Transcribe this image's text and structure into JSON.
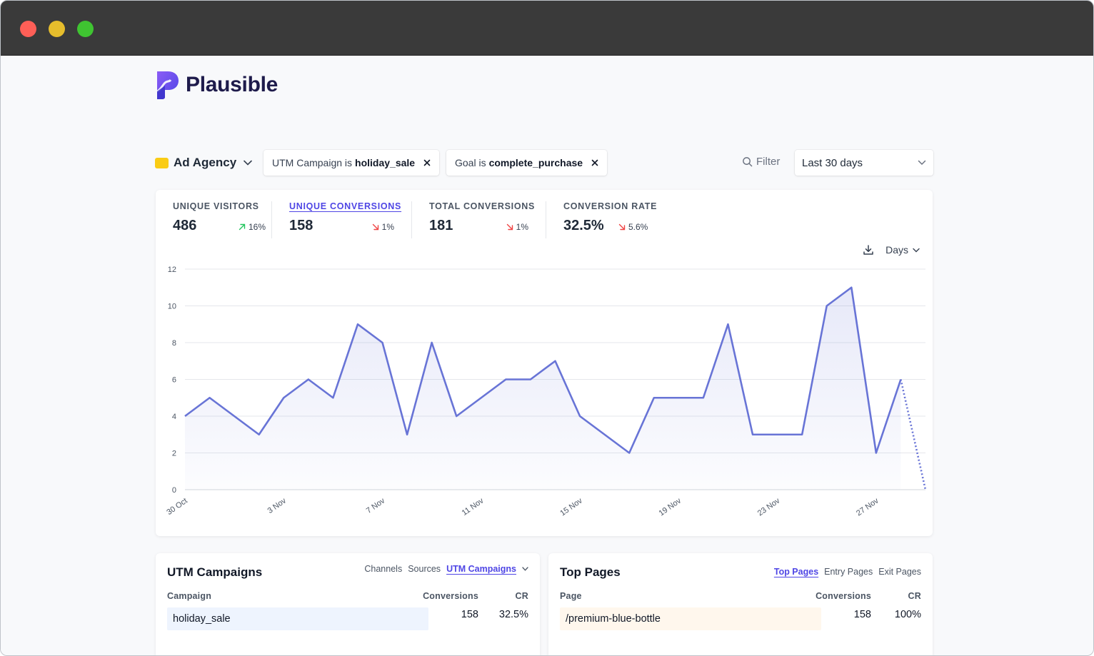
{
  "app": {
    "name": "Plausible"
  },
  "site": {
    "name": "Ad Agency"
  },
  "filters": [
    {
      "prefix": "UTM Campaign is",
      "value": "holiday_sale"
    },
    {
      "prefix": "Goal is",
      "value": "complete_purchase"
    }
  ],
  "filter_button": {
    "label": "Filter"
  },
  "period": {
    "label": "Last 30 days"
  },
  "stats": [
    {
      "label": "UNIQUE VISITORS",
      "value": "486",
      "change": "16%",
      "direction": "up"
    },
    {
      "label": "UNIQUE CONVERSIONS",
      "value": "158",
      "change": "1%",
      "direction": "down"
    },
    {
      "label": "TOTAL CONVERSIONS",
      "value": "181",
      "change": "1%",
      "direction": "down"
    },
    {
      "label": "CONVERSION RATE",
      "value": "32.5%",
      "change": "5.6%",
      "direction": "down"
    }
  ],
  "interval": {
    "label": "Days"
  },
  "colors": {
    "accent": "#4f46e5",
    "line": "#6874d6",
    "up": "#22c55e",
    "down": "#ef4444",
    "site_dot": "#facc15"
  },
  "chart_data": {
    "type": "area",
    "x": [
      "30 Oct",
      "31 Oct",
      "1 Nov",
      "2 Nov",
      "3 Nov",
      "4 Nov",
      "5 Nov",
      "6 Nov",
      "7 Nov",
      "8 Nov",
      "9 Nov",
      "10 Nov",
      "11 Nov",
      "12 Nov",
      "13 Nov",
      "14 Nov",
      "15 Nov",
      "16 Nov",
      "17 Nov",
      "18 Nov",
      "19 Nov",
      "20 Nov",
      "21 Nov",
      "22 Nov",
      "23 Nov",
      "24 Nov",
      "25 Nov",
      "26 Nov",
      "27 Nov",
      "28 Nov",
      "29 Nov"
    ],
    "values": [
      4,
      5,
      4,
      3,
      5,
      6,
      5,
      9,
      8,
      3,
      8,
      4,
      5,
      6,
      6,
      7,
      4,
      3,
      2,
      5,
      5,
      5,
      9,
      3,
      3,
      3,
      10,
      11,
      2,
      6,
      0
    ],
    "dotted_last_segment": true,
    "x_tick_labels": [
      "30 Oct",
      "3 Nov",
      "7 Nov",
      "11 Nov",
      "15 Nov",
      "19 Nov",
      "23 Nov",
      "27 Nov"
    ],
    "y_ticks": [
      0,
      2,
      4,
      6,
      8,
      10,
      12
    ],
    "ylim": [
      0,
      12
    ],
    "grid": true
  },
  "panels": {
    "utm": {
      "title": "UTM Campaigns",
      "tabs": [
        "Channels",
        "Sources",
        "UTM Campaigns"
      ],
      "active_tab": "UTM Campaigns",
      "columns": [
        "Campaign",
        "Conversions",
        "CR"
      ],
      "rows": [
        {
          "label": "holiday_sale",
          "conversions": "158",
          "cr": "32.5%"
        }
      ]
    },
    "pages": {
      "title": "Top Pages",
      "tabs": [
        "Top Pages",
        "Entry Pages",
        "Exit Pages"
      ],
      "active_tab": "Top Pages",
      "columns": [
        "Page",
        "Conversions",
        "CR"
      ],
      "rows": [
        {
          "label": "/premium-blue-bottle",
          "conversions": "158",
          "cr": "100%"
        }
      ]
    }
  }
}
